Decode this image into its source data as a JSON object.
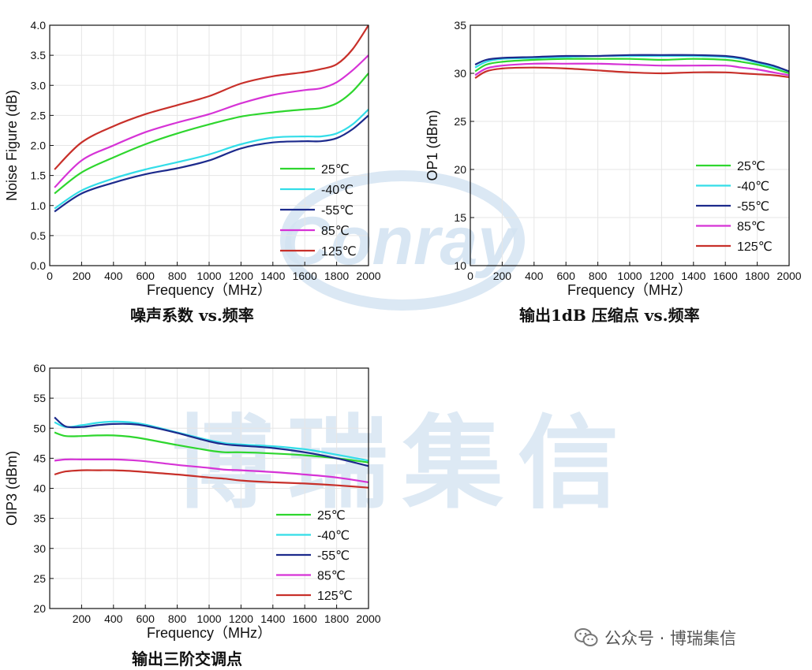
{
  "watermarks": {
    "logo_text": "Conray",
    "center_text": "博瑞集信"
  },
  "footer": {
    "account": "公众号 · 博瑞集信"
  },
  "colors": {
    "25C": "#2ed62e",
    "-40C": "#33dde8",
    "-55C": "#1c2a8c",
    "85C": "#d633d6",
    "125C": "#c8302a"
  },
  "chart_data": [
    {
      "id": "nf",
      "type": "line",
      "caption": "噪声系数 vs.频率",
      "xlabel": "Frequency（MHz）",
      "ylabel": "Noise Figure (dB)",
      "xlim": [
        0,
        2000
      ],
      "ylim": [
        0,
        4.0
      ],
      "xticks": [
        "0",
        "200",
        "400",
        "600",
        "800",
        "1000",
        "1200",
        "1400",
        "1600",
        "1800",
        "2000"
      ],
      "yticks": [
        "0.0",
        "0.5",
        "1.0",
        "1.5",
        "2.0",
        "2.5",
        "3.0",
        "3.5",
        "4.0"
      ],
      "legend": "right-lower",
      "x": [
        30,
        200,
        400,
        600,
        800,
        1000,
        1200,
        1400,
        1600,
        1700,
        1800,
        1900,
        2000
      ],
      "series": [
        {
          "name": "25℃",
          "color": "#2ed62e",
          "values": [
            1.2,
            1.55,
            1.8,
            2.02,
            2.2,
            2.35,
            2.48,
            2.55,
            2.6,
            2.62,
            2.7,
            2.9,
            3.2
          ]
        },
        {
          "name": "-40℃",
          "color": "#33dde8",
          "values": [
            0.95,
            1.25,
            1.45,
            1.6,
            1.72,
            1.85,
            2.02,
            2.13,
            2.15,
            2.15,
            2.2,
            2.35,
            2.6
          ]
        },
        {
          "name": "-55℃",
          "color": "#1c2a8c",
          "values": [
            0.9,
            1.2,
            1.38,
            1.52,
            1.62,
            1.75,
            1.95,
            2.05,
            2.07,
            2.07,
            2.12,
            2.27,
            2.5
          ]
        },
        {
          "name": "85℃",
          "color": "#d633d6",
          "values": [
            1.3,
            1.75,
            2.0,
            2.22,
            2.38,
            2.52,
            2.7,
            2.84,
            2.92,
            2.95,
            3.05,
            3.25,
            3.5
          ]
        },
        {
          "name": "125℃",
          "color": "#c8302a",
          "values": [
            1.6,
            2.05,
            2.32,
            2.52,
            2.67,
            2.82,
            3.03,
            3.15,
            3.22,
            3.27,
            3.35,
            3.6,
            4.0
          ]
        }
      ]
    },
    {
      "id": "op1",
      "type": "line",
      "caption": "输出1dB 压缩点 vs.频率",
      "xlabel": "Frequency（MHz）",
      "ylabel": "OP1 (dBm)",
      "xlim": [
        0,
        2000
      ],
      "ylim": [
        10,
        35
      ],
      "xticks": [
        "0",
        "200",
        "400",
        "600",
        "800",
        "1000",
        "1200",
        "1400",
        "1600",
        "1800",
        "2000"
      ],
      "yticks": [
        "10",
        "15",
        "20",
        "25",
        "30",
        "35"
      ],
      "legend": "right-lower",
      "x": [
        30,
        100,
        200,
        400,
        600,
        800,
        1000,
        1200,
        1400,
        1600,
        1700,
        1800,
        1900,
        2000
      ],
      "series": [
        {
          "name": "25℃",
          "color": "#2ed62e",
          "values": [
            30.2,
            30.9,
            31.2,
            31.4,
            31.5,
            31.5,
            31.5,
            31.4,
            31.5,
            31.4,
            31.2,
            30.9,
            30.5,
            30.0
          ]
        },
        {
          "name": "-40℃",
          "color": "#33dde8",
          "values": [
            30.6,
            31.2,
            31.5,
            31.6,
            31.7,
            31.8,
            31.8,
            31.8,
            31.8,
            31.7,
            31.5,
            31.1,
            30.7,
            30.2
          ]
        },
        {
          "name": "-55℃",
          "color": "#1c2a8c",
          "values": [
            30.9,
            31.4,
            31.6,
            31.7,
            31.8,
            31.8,
            31.9,
            31.9,
            31.9,
            31.8,
            31.6,
            31.2,
            30.8,
            30.2
          ]
        },
        {
          "name": "85℃",
          "color": "#d633d6",
          "values": [
            29.8,
            30.5,
            30.8,
            31.0,
            31.0,
            31.0,
            30.9,
            30.8,
            30.8,
            30.8,
            30.6,
            30.4,
            30.1,
            29.8
          ]
        },
        {
          "name": "125℃",
          "color": "#c8302a",
          "values": [
            29.5,
            30.2,
            30.5,
            30.6,
            30.5,
            30.3,
            30.1,
            30.0,
            30.1,
            30.1,
            30.0,
            29.9,
            29.8,
            29.6
          ]
        }
      ]
    },
    {
      "id": "oip3",
      "type": "line",
      "caption": "输出三阶交调点",
      "xlabel": "Frequency（MHz）",
      "ylabel": "OIP3 (dBm)",
      "xlim": [
        0,
        2000
      ],
      "ylim": [
        20,
        60
      ],
      "xticks": [
        "200",
        "400",
        "600",
        "800",
        "1000",
        "1200",
        "1400",
        "1600",
        "1800",
        "2000"
      ],
      "yticks": [
        "20",
        "25",
        "30",
        "35",
        "40",
        "45",
        "50",
        "55",
        "60"
      ],
      "legend": "right-lower",
      "x": [
        30,
        100,
        200,
        300,
        400,
        500,
        600,
        800,
        1000,
        1100,
        1200,
        1400,
        1600,
        1800,
        2000
      ],
      "series": [
        {
          "name": "25℃",
          "color": "#2ed62e",
          "values": [
            49.3,
            48.7,
            48.7,
            48.8,
            48.8,
            48.6,
            48.2,
            47.2,
            46.3,
            46.0,
            46.0,
            45.8,
            45.5,
            45.0,
            44.3
          ]
        },
        {
          "name": "-40℃",
          "color": "#33dde8",
          "values": [
            51.0,
            50.2,
            50.5,
            50.9,
            51.1,
            51.0,
            50.6,
            49.3,
            48.0,
            47.5,
            47.3,
            47.0,
            46.5,
            45.6,
            44.6
          ]
        },
        {
          "name": "-55℃",
          "color": "#1c2a8c",
          "values": [
            51.8,
            50.3,
            50.2,
            50.5,
            50.7,
            50.7,
            50.4,
            49.2,
            47.8,
            47.3,
            47.1,
            46.7,
            46.0,
            45.0,
            43.7
          ]
        },
        {
          "name": "85℃",
          "color": "#d633d6",
          "values": [
            44.6,
            44.8,
            44.8,
            44.8,
            44.8,
            44.7,
            44.5,
            43.9,
            43.4,
            43.1,
            43.0,
            42.7,
            42.3,
            41.8,
            41.0
          ]
        },
        {
          "name": "125℃",
          "color": "#c8302a",
          "values": [
            42.3,
            42.8,
            43.0,
            43.0,
            43.0,
            42.9,
            42.7,
            42.3,
            41.8,
            41.6,
            41.3,
            41.0,
            40.8,
            40.5,
            40.1
          ]
        }
      ]
    }
  ]
}
